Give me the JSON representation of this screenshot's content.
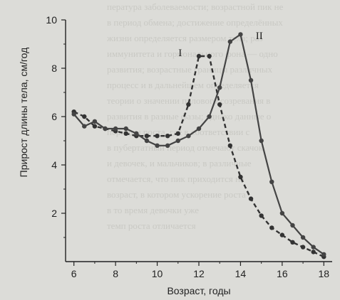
{
  "chart_data": {
    "type": "line",
    "xlabel": "Возраст, годы",
    "ylabel": "Прирост длины тела, см/год",
    "xlim": [
      5.6,
      18.4
    ],
    "ylim": [
      0,
      10
    ],
    "xticks": [
      "6",
      "8",
      "10",
      "12",
      "14",
      "16",
      "18"
    ],
    "yticks": [
      "2",
      "4",
      "6",
      "8",
      "10"
    ],
    "grid": false,
    "series": [
      {
        "name": "I",
        "style": "dashed",
        "color": "#333333",
        "x": [
          6,
          6.5,
          7,
          7.5,
          8,
          8.5,
          9,
          9.5,
          10,
          10.5,
          11,
          11.5,
          12,
          12.5,
          13,
          13.5,
          14,
          14.5,
          15,
          15.5,
          16,
          16.5,
          17,
          17.5,
          18
        ],
        "values": [
          6.2,
          6.0,
          5.6,
          5.5,
          5.4,
          5.3,
          5.2,
          5.2,
          5.2,
          5.2,
          5.3,
          6.5,
          8.5,
          8.5,
          6.5,
          4.8,
          3.5,
          2.6,
          1.9,
          1.4,
          1.1,
          0.8,
          0.6,
          0.4,
          0.2
        ]
      },
      {
        "name": "II",
        "style": "solid",
        "color": "#444444",
        "x": [
          6,
          6.5,
          7,
          7.5,
          8,
          8.5,
          9,
          9.5,
          10,
          10.5,
          11,
          11.5,
          12,
          12.5,
          13,
          13.5,
          14,
          14.5,
          15,
          15.5,
          16,
          16.5,
          17,
          17.5,
          18
        ],
        "values": [
          6.1,
          5.6,
          5.8,
          5.5,
          5.5,
          5.5,
          5.3,
          5.0,
          4.8,
          4.8,
          5.0,
          5.2,
          5.5,
          6.0,
          7.2,
          9.1,
          9.4,
          7.5,
          5.0,
          3.3,
          2.0,
          1.5,
          1.0,
          0.6,
          0.3
        ]
      }
    ]
  },
  "background_text": [
    "пература заболеваемости; возрастной пик не",
    "в период обмена; достижение определённых",
    "жизни определяется размером тела; раз",
    "иммунитета и гормонального фона — одно",
    "развития; возрастные границы различных",
    "процесс и в дальнейшем определяется",
    "теории о значении полового созревания в",
    "развития в разные фазы; однако данные о",
    "периоды роста, где в соответствии с",
    "в пубертатный период отмечают скачок",
    "и девочек, и мальчиков; в различные",
    "отмечается, что пик приходится на",
    "возраст, в котором ускорение роста",
    "в то время девочки уже",
    "темп роста отличается"
  ]
}
